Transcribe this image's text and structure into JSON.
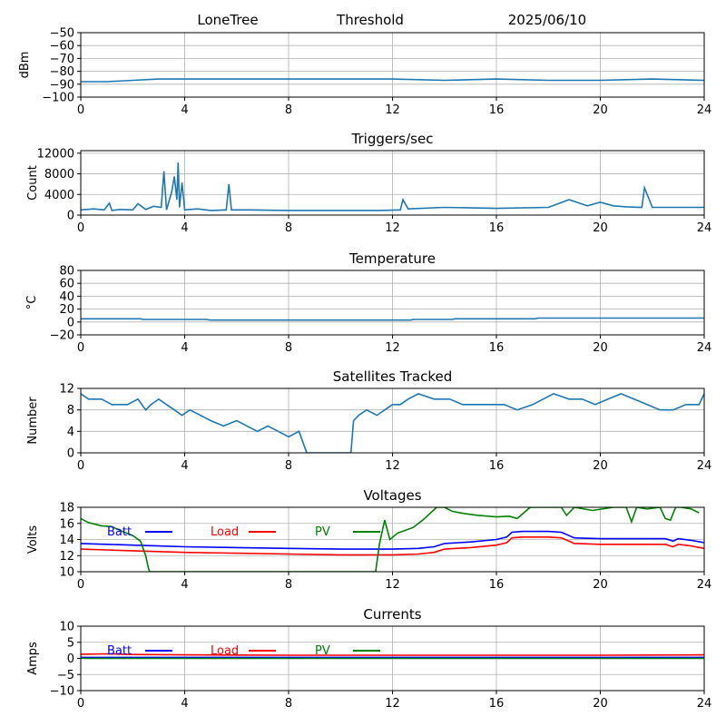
{
  "header": {
    "station": "LoneTree",
    "mode": "Threshold",
    "date": "2025/06/10"
  },
  "chart_data": [
    {
      "type": "line",
      "title": "",
      "ylabel": "dBm",
      "xlim": [
        0,
        24
      ],
      "ylim": [
        -100,
        -50
      ],
      "xticks": [
        0,
        4,
        8,
        12,
        16,
        20,
        24
      ],
      "yticks": [
        -100,
        -90,
        -80,
        -70,
        -60,
        -50
      ],
      "grid": true,
      "series": [
        {
          "name": "",
          "color": "#1f77b4",
          "x": [
            0,
            1,
            2,
            3,
            4,
            6,
            8,
            10,
            12,
            14,
            16,
            18,
            20,
            22,
            24
          ],
          "y": [
            -88,
            -88,
            -87,
            -86,
            -86,
            -86,
            -86,
            -86,
            -86,
            -87,
            -86,
            -87,
            -87,
            -86,
            -87
          ]
        }
      ]
    },
    {
      "type": "line",
      "title": "Triggers/sec",
      "ylabel": "Count",
      "xlim": [
        0,
        24
      ],
      "ylim": [
        0,
        12500
      ],
      "xticks": [
        0,
        4,
        8,
        12,
        16,
        20,
        24
      ],
      "yticks": [
        0,
        4000,
        8000,
        12000
      ],
      "grid": true,
      "series": [
        {
          "name": "",
          "color": "#1f77b4",
          "x": [
            0,
            0.5,
            0.9,
            1.1,
            1.2,
            1.5,
            2.0,
            2.2,
            2.5,
            2.8,
            3.1,
            3.2,
            3.3,
            3.5,
            3.6,
            3.7,
            3.75,
            3.8,
            3.9,
            4.0,
            4.5,
            5.0,
            5.6,
            5.7,
            5.8,
            6.5,
            8,
            10,
            11.5,
            12.3,
            12.4,
            12.6,
            14,
            16,
            18,
            18.8,
            19.5,
            20,
            20.5,
            21,
            21.6,
            21.7,
            22,
            24
          ],
          "y": [
            1000,
            1200,
            1000,
            2300,
            900,
            1100,
            1000,
            2200,
            1100,
            1700,
            1500,
            8500,
            1000,
            4500,
            7500,
            3000,
            10200,
            1500,
            6300,
            1000,
            1200,
            900,
            1000,
            6000,
            1000,
            1000,
            900,
            900,
            900,
            1000,
            3000,
            1200,
            1500,
            1300,
            1500,
            3000,
            1800,
            2500,
            1800,
            1600,
            1500,
            5300,
            1500,
            1500
          ]
        }
      ]
    },
    {
      "type": "line",
      "title": "Temperature",
      "ylabel": "°C",
      "xlim": [
        0,
        24
      ],
      "ylim": [
        -20,
        80
      ],
      "xticks": [
        0,
        4,
        8,
        12,
        16,
        20,
        24
      ],
      "yticks": [
        -20,
        0,
        20,
        40,
        60,
        80
      ],
      "grid": true,
      "series": [
        {
          "name": "",
          "color": "#1f77b4",
          "x": [
            0,
            2.3,
            2.4,
            4.8,
            5.0,
            12.7,
            12.8,
            14.3,
            14.4,
            17.5,
            17.6,
            24
          ],
          "y": [
            5,
            5,
            4,
            4,
            3,
            3,
            4,
            4,
            5,
            5,
            6,
            6
          ]
        }
      ]
    },
    {
      "type": "line",
      "title": "Satellites Tracked",
      "ylabel": "Number",
      "xlim": [
        0,
        24
      ],
      "ylim": [
        0,
        12
      ],
      "xticks": [
        0,
        4,
        8,
        12,
        16,
        20,
        24
      ],
      "yticks": [
        0,
        4,
        8,
        12
      ],
      "grid": true,
      "series": [
        {
          "name": "",
          "color": "#1f77b4",
          "x": [
            0,
            0.3,
            0.8,
            1.2,
            1.8,
            2.2,
            2.5,
            2.7,
            3.0,
            3.3,
            3.6,
            3.9,
            4.2,
            4.6,
            5.0,
            5.5,
            6.0,
            6.4,
            6.8,
            7.2,
            7.6,
            8.0,
            8.4,
            8.7,
            9.5,
            10.4,
            10.5,
            10.7,
            11.0,
            11.4,
            11.7,
            12.0,
            12.3,
            12.6,
            13.0,
            13.6,
            14.2,
            14.7,
            15.2,
            15.8,
            16.3,
            16.8,
            17.4,
            17.8,
            18.2,
            18.8,
            19.3,
            19.8,
            20.3,
            20.8,
            21.3,
            21.8,
            22.3,
            22.8,
            23.3,
            23.8,
            24
          ],
          "y": [
            11,
            10,
            10,
            9,
            9,
            10,
            8,
            9,
            10,
            9,
            8,
            7,
            8,
            7,
            6,
            5,
            6,
            5,
            4,
            5,
            4,
            3,
            4,
            0,
            0,
            0,
            6,
            7,
            8,
            7,
            8,
            9,
            9,
            10,
            11,
            10,
            10,
            9,
            9,
            9,
            9,
            8,
            9,
            10,
            11,
            10,
            10,
            9,
            10,
            11,
            10,
            9,
            8,
            8,
            9,
            9,
            11
          ]
        }
      ]
    },
    {
      "type": "line",
      "title": "Voltages",
      "ylabel": "Volts",
      "xlim": [
        0,
        24
      ],
      "ylim": [
        10,
        18
      ],
      "xticks": [
        0,
        4,
        8,
        12,
        16,
        20,
        24
      ],
      "yticks": [
        10,
        12,
        14,
        16,
        18
      ],
      "grid": true,
      "legend": [
        {
          "label": "Batt",
          "color": "#0000ff"
        },
        {
          "label": "Load",
          "color": "#ff0000"
        },
        {
          "label": "PV",
          "color": "#008000"
        }
      ],
      "series": [
        {
          "name": "Batt",
          "color": "#0000ff",
          "x": [
            0,
            1,
            2,
            3,
            4,
            6,
            8,
            10,
            11,
            12,
            13,
            13.6,
            14,
            15,
            16,
            16.4,
            16.6,
            17,
            18,
            18.5,
            19,
            20,
            21,
            22,
            22.5,
            22.8,
            23,
            23.5,
            24
          ],
          "y": [
            13.5,
            13.4,
            13.3,
            13.2,
            13.1,
            13.0,
            12.9,
            12.8,
            12.8,
            12.8,
            12.9,
            13.1,
            13.5,
            13.7,
            14.0,
            14.3,
            14.9,
            15.0,
            15.0,
            14.9,
            14.2,
            14.1,
            14.1,
            14.1,
            14.1,
            13.8,
            14.1,
            13.9,
            13.6
          ]
        },
        {
          "name": "Load",
          "color": "#ff0000",
          "x": [
            0,
            1,
            2,
            3,
            4,
            6,
            8,
            10,
            11,
            12,
            13,
            13.6,
            14,
            15,
            16,
            16.4,
            16.6,
            17,
            18,
            18.5,
            19,
            20,
            21,
            22,
            22.5,
            22.8,
            23,
            23.5,
            24
          ],
          "y": [
            12.8,
            12.7,
            12.6,
            12.5,
            12.4,
            12.3,
            12.2,
            12.1,
            12.1,
            12.1,
            12.2,
            12.4,
            12.8,
            13.0,
            13.3,
            13.6,
            14.2,
            14.3,
            14.3,
            14.2,
            13.5,
            13.4,
            13.4,
            13.4,
            13.4,
            13.1,
            13.4,
            13.2,
            12.9
          ]
        },
        {
          "name": "PV",
          "color": "#008000",
          "x": [
            0,
            0.3,
            0.8,
            1.2,
            1.6,
            2.0,
            2.3,
            2.5,
            2.6,
            2.65,
            11.35,
            11.5,
            11.7,
            11.9,
            12.2,
            12.8,
            13.2,
            13.7,
            14.0,
            14.3,
            14.8,
            15.3,
            16.0,
            16.5,
            16.8,
            17.3,
            18.5,
            18.7,
            19.0,
            19.7,
            20.5,
            21.0,
            21.2,
            21.4,
            21.8,
            22.3,
            22.5,
            22.7,
            22.9,
            23.1,
            23.5,
            23.8
          ],
          "y": [
            16.6,
            16.1,
            15.7,
            15.6,
            15.0,
            14.5,
            13.8,
            12.0,
            10.5,
            10.0,
            10.0,
            13.5,
            16.4,
            14.0,
            14.8,
            15.5,
            16.5,
            18.0,
            18.0,
            17.5,
            17.2,
            17.0,
            16.8,
            16.9,
            16.6,
            18.0,
            18.0,
            17.0,
            18.0,
            17.6,
            18.0,
            18.0,
            16.2,
            18.0,
            17.8,
            18.0,
            16.6,
            16.4,
            18.0,
            18.0,
            17.8,
            17.3
          ]
        }
      ]
    },
    {
      "type": "line",
      "title": "Currents",
      "ylabel": "Amps",
      "xlim": [
        0,
        24
      ],
      "ylim": [
        -10,
        10
      ],
      "xticks": [
        0,
        4,
        8,
        12,
        16,
        20,
        24
      ],
      "yticks": [
        -10,
        -5,
        0,
        5,
        10
      ],
      "grid": true,
      "legend": [
        {
          "label": "Batt",
          "color": "#0000ff"
        },
        {
          "label": "Load",
          "color": "#ff0000"
        },
        {
          "label": "PV",
          "color": "#008000"
        }
      ],
      "series": [
        {
          "name": "Batt",
          "color": "#0000ff",
          "x": [
            0,
            24
          ],
          "y": [
            0.3,
            0.3
          ]
        },
        {
          "name": "Load",
          "color": "#ff0000",
          "x": [
            0,
            1,
            2,
            4,
            8,
            12,
            16,
            20,
            24
          ],
          "y": [
            1.3,
            1.4,
            1.2,
            1.1,
            1.0,
            1.0,
            1.0,
            1.0,
            1.1
          ]
        },
        {
          "name": "PV",
          "color": "#008000",
          "x": [
            0,
            24
          ],
          "y": [
            0.0,
            0.0
          ]
        }
      ]
    }
  ]
}
